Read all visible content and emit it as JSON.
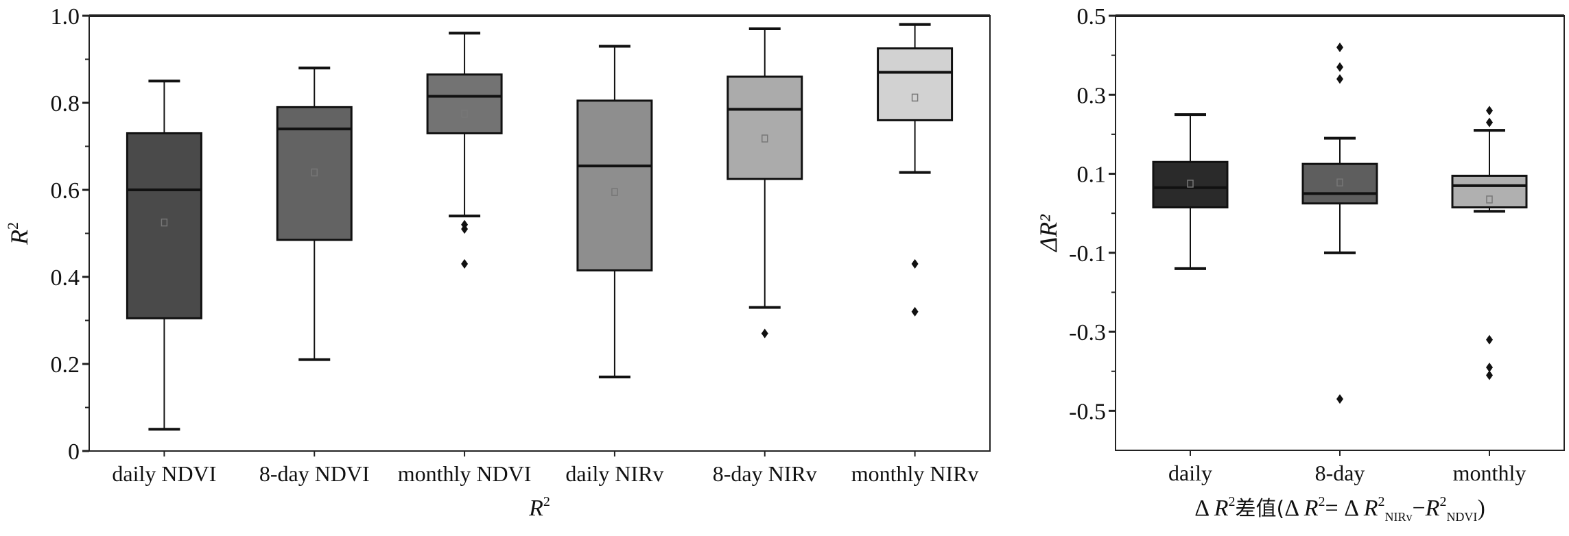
{
  "chart_data": [
    {
      "type": "box",
      "title": "",
      "xlabel": "R²",
      "xlabel_parts": {
        "italic": "R",
        "sup": "2"
      },
      "ylabel": "R²",
      "ylabel_parts": {
        "italic": "R",
        "sup": "2"
      },
      "ylim": [
        0,
        1
      ],
      "yticks": [
        "0",
        "0.2",
        "0.4",
        "0.6",
        "0.8",
        "1.0"
      ],
      "ytick_values": [
        0,
        0.2,
        0.4,
        0.6,
        0.8,
        1.0
      ],
      "minor_ticks": [
        0.1,
        0.3,
        0.5,
        0.7,
        0.9
      ],
      "grid": false,
      "categories": [
        "daily NDVI",
        "8-day NDVI",
        "monthly NDVI",
        "daily NIRv",
        "8-day NIRv",
        "monthly NIRv"
      ],
      "boxes": [
        {
          "min": 0.05,
          "q1": 0.305,
          "median": 0.6,
          "q3": 0.73,
          "max": 0.85,
          "mean": 0.525,
          "outliers": [],
          "color": "#4a4a4a"
        },
        {
          "min": 0.21,
          "q1": 0.485,
          "median": 0.74,
          "q3": 0.79,
          "max": 0.88,
          "mean": 0.64,
          "outliers": [],
          "color": "#636363"
        },
        {
          "min": 0.54,
          "q1": 0.73,
          "median": 0.815,
          "q3": 0.865,
          "max": 0.96,
          "mean": 0.775,
          "outliers": [
            0.52,
            0.51,
            0.43
          ],
          "color": "#737373"
        },
        {
          "min": 0.17,
          "q1": 0.415,
          "median": 0.655,
          "q3": 0.805,
          "max": 0.93,
          "mean": 0.595,
          "outliers": [],
          "color": "#8e8e8e"
        },
        {
          "min": 0.33,
          "q1": 0.625,
          "median": 0.785,
          "q3": 0.86,
          "max": 0.97,
          "mean": 0.718,
          "outliers": [
            0.27
          ],
          "color": "#ababab"
        },
        {
          "min": 0.64,
          "q1": 0.76,
          "median": 0.87,
          "q3": 0.925,
          "max": 0.98,
          "mean": 0.812,
          "outliers": [
            0.43,
            0.32
          ],
          "color": "#d2d2d2"
        }
      ]
    },
    {
      "type": "box",
      "title": "",
      "xlabel": "ΔR²差值(ΔR²=ΔR²NIRv−R²NDVI)",
      "xlabel_parts": {
        "delta": "Δ",
        "r": "R",
        "sup": "2",
        "cn": "差值(",
        "eq": "=",
        "minus": "−",
        "nirv": "NIRv",
        "ndvi": "NDVI",
        "close": ")"
      },
      "ylabel": "ΔR²",
      "ylabel_parts": {
        "delta": "Δ",
        "italic": "R",
        "sup": "2"
      },
      "ylim": [
        -0.6,
        0.5
      ],
      "yticks": [
        "0.5",
        "0.3",
        "0.1",
        "-0.1",
        "-0.3",
        "-0.5"
      ],
      "ytick_values": [
        0.5,
        0.3,
        0.1,
        -0.1,
        -0.3,
        -0.5
      ],
      "minor_ticks": [
        0.4,
        0.2,
        0.0,
        -0.2,
        -0.4
      ],
      "grid": false,
      "categories": [
        "daily",
        "8-day",
        "monthly"
      ],
      "boxes": [
        {
          "min": -0.14,
          "q1": 0.015,
          "median": 0.065,
          "q3": 0.13,
          "max": 0.25,
          "mean": 0.075,
          "outliers": [],
          "color": "#2a2a2a"
        },
        {
          "min": -0.1,
          "q1": 0.025,
          "median": 0.05,
          "q3": 0.125,
          "max": 0.19,
          "mean": 0.078,
          "outliers": [
            0.42,
            0.37,
            0.34,
            -0.47
          ],
          "color": "#5e5e5e"
        },
        {
          "min": 0.005,
          "q1": 0.015,
          "median": 0.07,
          "q3": 0.095,
          "max": 0.21,
          "mean": 0.035,
          "outliers": [
            0.26,
            0.23,
            -0.32,
            -0.39,
            -0.41
          ],
          "color": "#b0b0b0"
        }
      ]
    }
  ]
}
